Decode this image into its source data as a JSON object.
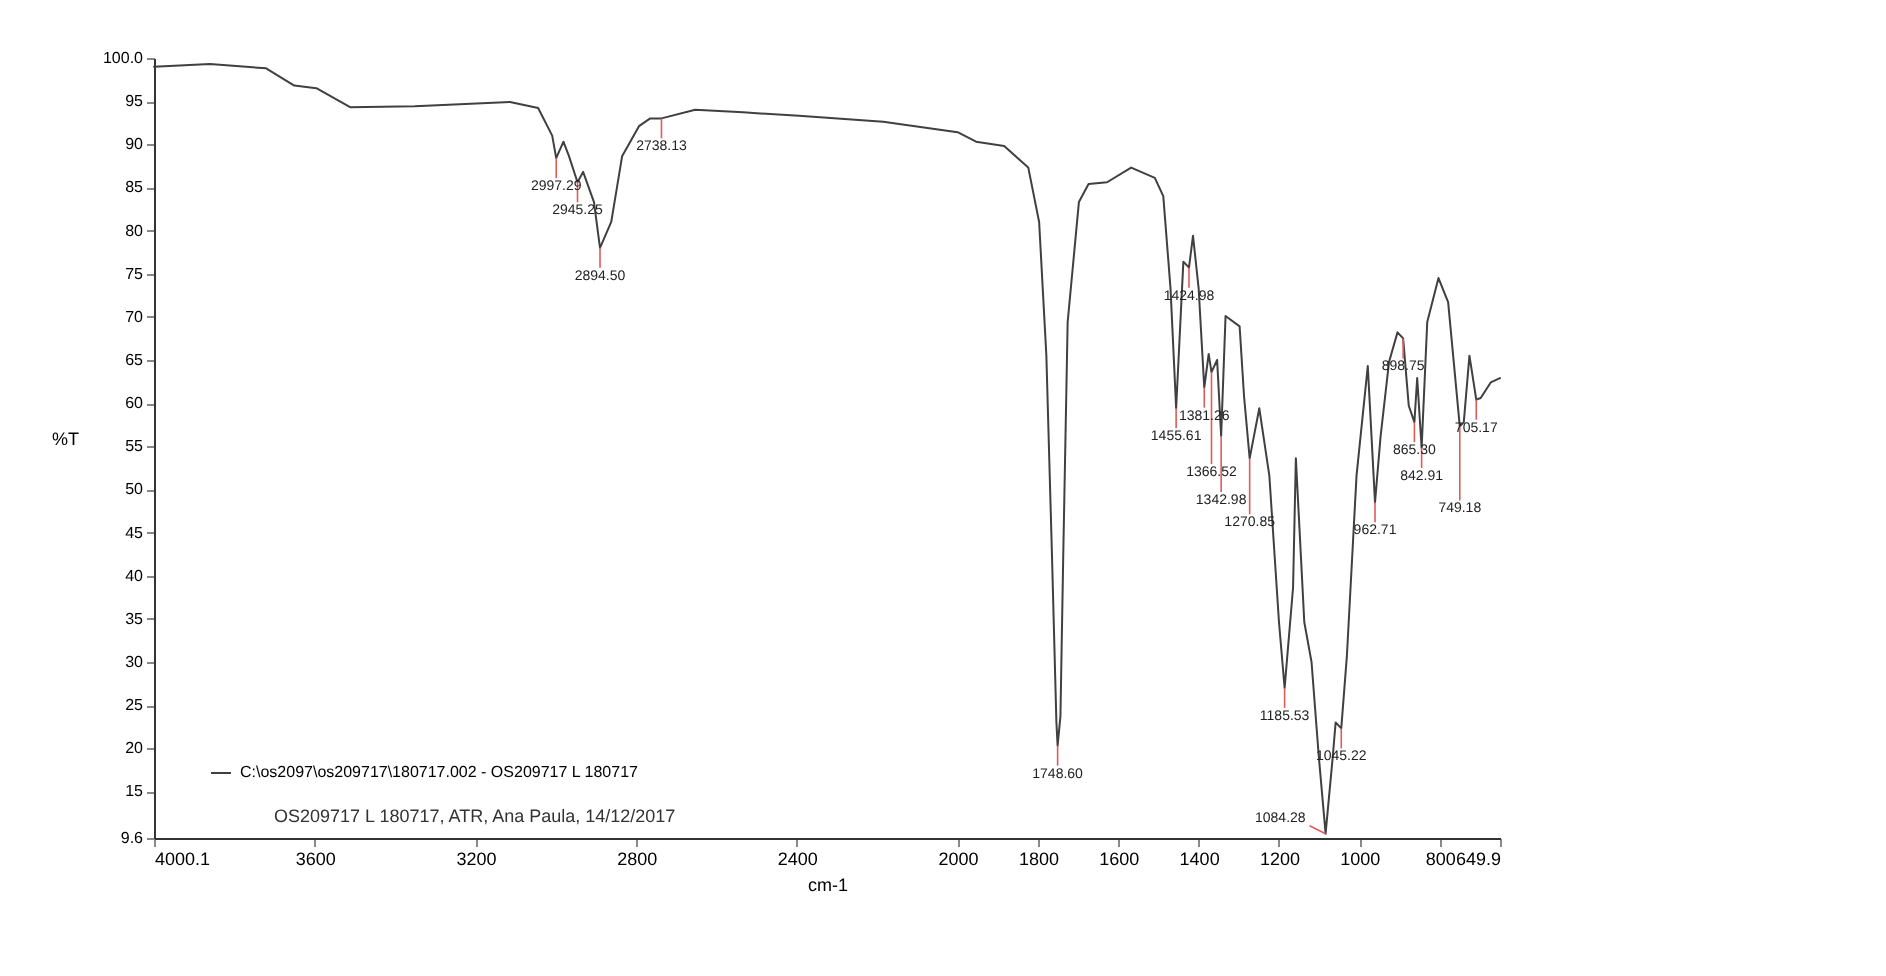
{
  "chart_data": {
    "type": "line",
    "xlabel": "cm-1",
    "ylabel": "%T",
    "xlim": [
      4000.1,
      649.9
    ],
    "ylim": [
      9.6,
      100
    ],
    "xticks": [
      4000.1,
      3600,
      3200,
      2800,
      2400,
      2000,
      1800,
      1600,
      1400,
      1200,
      1000,
      800,
      649.9
    ],
    "yticks": [
      {
        "value": 9.6,
        "label": "9.6"
      },
      15,
      20,
      25,
      30,
      35,
      40,
      45,
      50,
      55,
      60,
      65,
      70,
      75,
      80,
      85,
      90,
      95,
      {
        "value": 100,
        "label": "100.0"
      }
    ],
    "grid": false,
    "legend": "bottom left",
    "marker": "none",
    "line_style": "solid",
    "series": [
      {
        "name": "C:\\os2097\\os209717\\180717.002 - OS209717 L 180717",
        "color": "#404040",
        "x": [
          4000,
          3861,
          3721,
          3651,
          3596,
          3512,
          3351,
          3114,
          3044,
          3009,
          2999,
          2981,
          2967,
          2946,
          2932,
          2905,
          2890,
          2862,
          2835,
          2793,
          2765,
          2737,
          2653,
          2534,
          2395,
          2185,
          2000,
          1954,
          1884,
          1824,
          1797,
          1779,
          1765,
          1754,
          1751,
          1744,
          1737,
          1726,
          1698,
          1674,
          1628,
          1568,
          1509,
          1488,
          1470,
          1456,
          1438,
          1424,
          1414,
          1400,
          1386,
          1375,
          1368,
          1354,
          1344,
          1333,
          1298,
          1287,
          1273,
          1249,
          1224,
          1200,
          1186,
          1165,
          1158,
          1137,
          1119,
          1101,
          1084,
          1066,
          1059,
          1045,
          1031,
          1007,
          979,
          961,
          947,
          926,
          905,
          891,
          877,
          863,
          856,
          845,
          831,
          803,
          779,
          750,
          740,
          726,
          709,
          698,
          673,
          650
        ],
        "values": [
          99.0,
          99.3,
          98.8,
          96.8,
          96.5,
          94.3,
          94.4,
          94.9,
          94.2,
          91.0,
          88.4,
          90.3,
          88.6,
          85.6,
          86.8,
          83.3,
          78.0,
          81.0,
          88.6,
          92.1,
          93.0,
          93.0,
          94.0,
          93.7,
          93.3,
          92.6,
          91.4,
          90.3,
          89.8,
          87.3,
          81.0,
          65.5,
          42.3,
          23.0,
          20.3,
          23.7,
          42.3,
          69.4,
          83.3,
          85.4,
          85.6,
          87.3,
          86.1,
          84.0,
          73.3,
          59.4,
          76.4,
          75.7,
          79.4,
          73.3,
          61.8,
          65.7,
          63.6,
          65.0,
          56.2,
          70.1,
          68.9,
          60.8,
          53.6,
          59.4,
          51.6,
          34.6,
          27.0,
          38.6,
          53.6,
          34.6,
          30.0,
          19.1,
          10.1,
          19.1,
          23.0,
          22.3,
          30.7,
          51.6,
          64.3,
          48.5,
          56.2,
          64.8,
          68.2,
          67.5,
          59.7,
          57.8,
          62.9,
          54.8,
          69.4,
          74.5,
          71.7,
          57.3,
          57.8,
          65.5,
          60.4,
          60.6,
          62.4,
          62.9
        ]
      }
    ],
    "annotations": [
      "OS209717 L 180717, ATR, Ana Paula, 14/12/2017",
      {
        "text": "2997.29",
        "x": 2999,
        "y": 88.4
      },
      {
        "text": "2945.25",
        "x": 2946,
        "y": 85.6
      },
      {
        "text": "2894.50",
        "x": 2890,
        "y": 78.0
      },
      {
        "text": "2738.13",
        "x": 2737,
        "y": 93.0
      },
      {
        "text": "1748.60",
        "x": 1751,
        "y": 20.3
      },
      {
        "text": "1455.61",
        "x": 1456,
        "y": 59.4
      },
      {
        "text": "1424.98",
        "x": 1424,
        "y": 75.7
      },
      {
        "text": "1381.26",
        "x": 1386,
        "y": 61.8
      },
      {
        "text": "1366.52",
        "x": 1368,
        "y": 63.6
      },
      {
        "text": "1342.98",
        "x": 1344,
        "y": 56.2
      },
      {
        "text": "1270.85",
        "x": 1273,
        "y": 53.6
      },
      {
        "text": "1185.53",
        "x": 1186,
        "y": 27.0
      },
      {
        "text": "1084.28",
        "x": 1084,
        "y": 10.1
      },
      {
        "text": "1045.22",
        "x": 1045,
        "y": 22.3
      },
      {
        "text": "962.71",
        "x": 961,
        "y": 48.5
      },
      {
        "text": "898.75",
        "x": 891,
        "y": 67.5
      },
      {
        "text": "865.30",
        "x": 863,
        "y": 57.8
      },
      {
        "text": "842.91",
        "x": 845,
        "y": 54.8
      },
      {
        "text": "749.18",
        "x": 750,
        "y": 57.3
      },
      {
        "text": "705.17",
        "x": 709,
        "y": 60.4
      }
    ]
  }
}
